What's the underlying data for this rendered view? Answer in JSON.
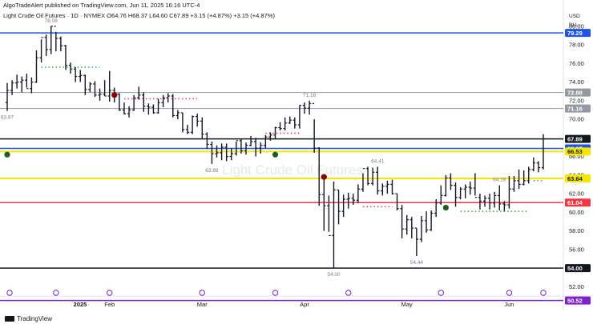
{
  "header": {
    "published": "AlgoTradeAlert published on TradingView.com, Jun 11, 2025 16:16 UTC-4",
    "symbol_line": "Light Crude Oil Futures · 1D · NYMEX  O64.76  H68.37  L64.60  C67.89  +3.15 (+4.87%)  +3.15 (+4.87%)"
  },
  "watermark": "Light Crude Oil Futures",
  "footer": {
    "brand": "TradingView"
  },
  "axis": {
    "currency": "USD",
    "bll": "BLL",
    "price_ticks": [
      "80.00",
      "78.00",
      "76.00",
      "74.00",
      "72.00",
      "70.00",
      "68.00",
      "66.00",
      "64.00",
      "62.00",
      "60.00",
      "58.00",
      "56.00",
      "54.00",
      "52.00"
    ],
    "time_ticks": [
      "2025",
      "Feb",
      "Mar",
      "Apr",
      "May",
      "Jun"
    ]
  },
  "colors": {
    "up": "#131722",
    "down": "#131722",
    "blue": "#1e53e5",
    "yellow": "#f7e600",
    "gray": "#9598a1",
    "green_dot": "#4caf50",
    "red_dot": "#f23645",
    "purple": "#7e22ce"
  },
  "chart_data": {
    "type": "ohlc",
    "title": "Light Crude Oil Futures · 1D · NYMEX",
    "ylim": [
      51.0,
      80.5
    ],
    "x": [
      "2025-01-02",
      "2025-06-11"
    ],
    "horizontal_levels": [
      {
        "value": 79.29,
        "color": "#1e53e5",
        "label": "79.29"
      },
      {
        "value": 72.88,
        "color": "#9598a1",
        "label": "72.88"
      },
      {
        "value": 71.16,
        "color": "#9598a1",
        "label": "71.16"
      },
      {
        "value": 67.89,
        "color": "#131722",
        "label": "67.89"
      },
      {
        "value": 66.87,
        "color": "#1e53e5",
        "label": "66.87"
      },
      {
        "value": 66.53,
        "color": "#f7e600",
        "label": "66.53"
      },
      {
        "value": 63.64,
        "color": "#f7e600",
        "label": "63.64"
      },
      {
        "value": 61.04,
        "color": "#f23645",
        "label": "61.04"
      },
      {
        "value": 54.0,
        "color": "#131722",
        "label": "54.00"
      },
      {
        "value": 50.52,
        "color": "#7e22ce",
        "label": "50.52"
      }
    ],
    "annotations": [
      {
        "text": "78.08",
        "date": "2025-01-15"
      },
      {
        "text": "71.16",
        "date": "2025-04-02"
      },
      {
        "text": "64.41",
        "date": "2025-04-23"
      },
      {
        "text": "64.19",
        "date": "2025-05-29"
      },
      {
        "text": "63.89",
        "date": "2025-03-05"
      },
      {
        "text": "63.87",
        "date": "2025-01-02"
      },
      {
        "text": "54.00",
        "date": "2025-04-09"
      },
      {
        "text": "54.44",
        "date": "2025-05-05"
      }
    ],
    "bars": [
      [
        "2025-01-02",
        71.8,
        73.9,
        70.9,
        73.1
      ],
      [
        "2025-01-03",
        73.1,
        74.2,
        72.6,
        73.9
      ],
      [
        "2025-01-06",
        73.9,
        74.8,
        73.3,
        74.0
      ],
      [
        "2025-01-07",
        74.0,
        74.6,
        72.9,
        74.2
      ],
      [
        "2025-01-08",
        74.2,
        74.9,
        73.4,
        73.3
      ],
      [
        "2025-01-09",
        73.3,
        74.5,
        72.8,
        74.0
      ],
      [
        "2025-01-10",
        74.0,
        77.4,
        73.9,
        76.6
      ],
      [
        "2025-01-13",
        76.6,
        78.6,
        76.1,
        78.8
      ],
      [
        "2025-01-14",
        78.8,
        79.1,
        76.8,
        77.5
      ],
      [
        "2025-01-15",
        77.5,
        80.0,
        77.0,
        80.0
      ],
      [
        "2025-01-16",
        80.0,
        79.4,
        77.3,
        78.7
      ],
      [
        "2025-01-17",
        78.7,
        78.9,
        77.3,
        77.9
      ],
      [
        "2025-01-21",
        77.9,
        78.0,
        75.3,
        75.8
      ],
      [
        "2025-01-22",
        75.8,
        76.1,
        74.9,
        75.4
      ],
      [
        "2025-01-23",
        75.4,
        75.6,
        74.0,
        74.6
      ],
      [
        "2025-01-24",
        74.6,
        75.3,
        74.0,
        74.7
      ],
      [
        "2025-01-27",
        74.7,
        74.8,
        72.6,
        73.2
      ],
      [
        "2025-01-28",
        73.2,
        74.0,
        72.9,
        73.8
      ],
      [
        "2025-01-29",
        73.8,
        74.1,
        72.4,
        72.6
      ],
      [
        "2025-01-30",
        72.6,
        73.3,
        72.0,
        72.7
      ],
      [
        "2025-01-31",
        72.7,
        74.2,
        72.5,
        72.5
      ],
      [
        "2025-02-03",
        72.5,
        75.2,
        71.9,
        73.1
      ],
      [
        "2025-02-04",
        73.1,
        73.4,
        71.8,
        72.7
      ],
      [
        "2025-02-05",
        72.7,
        72.8,
        70.9,
        71.0
      ],
      [
        "2025-02-06",
        71.0,
        71.8,
        70.5,
        70.6
      ],
      [
        "2025-02-07",
        70.6,
        71.4,
        70.2,
        71.0
      ],
      [
        "2025-02-10",
        71.0,
        72.6,
        70.9,
        72.3
      ],
      [
        "2025-02-11",
        72.3,
        73.5,
        72.1,
        72.6
      ],
      [
        "2025-02-12",
        72.6,
        72.9,
        70.8,
        71.4
      ],
      [
        "2025-02-13",
        71.4,
        71.7,
        70.5,
        71.3
      ],
      [
        "2025-02-14",
        71.3,
        71.6,
        70.6,
        70.7
      ],
      [
        "2025-02-18",
        70.7,
        72.2,
        70.6,
        71.8
      ],
      [
        "2025-02-19",
        71.8,
        72.6,
        71.3,
        72.3
      ],
      [
        "2025-02-20",
        72.3,
        72.8,
        71.8,
        72.5
      ],
      [
        "2025-02-21",
        72.5,
        72.7,
        70.2,
        70.4
      ],
      [
        "2025-02-24",
        70.4,
        71.0,
        70.0,
        70.7
      ],
      [
        "2025-02-25",
        70.7,
        70.7,
        68.6,
        68.9
      ],
      [
        "2025-02-26",
        68.9,
        69.4,
        68.4,
        68.6
      ],
      [
        "2025-02-27",
        68.6,
        70.4,
        68.4,
        70.3
      ],
      [
        "2025-02-28",
        70.3,
        70.6,
        69.2,
        69.8
      ],
      [
        "2025-03-03",
        69.8,
        70.2,
        67.9,
        68.4
      ],
      [
        "2025-03-04",
        68.4,
        68.6,
        66.8,
        67.3
      ],
      [
        "2025-03-05",
        67.3,
        67.6,
        65.2,
        66.3
      ],
      [
        "2025-03-06",
        66.3,
        67.2,
        65.9,
        66.4
      ],
      [
        "2025-03-07",
        66.4,
        67.4,
        65.6,
        67.0
      ],
      [
        "2025-03-10",
        67.0,
        67.4,
        65.5,
        66.0
      ],
      [
        "2025-03-11",
        66.0,
        66.9,
        65.6,
        66.3
      ],
      [
        "2025-03-12",
        66.3,
        67.6,
        66.1,
        67.7
      ],
      [
        "2025-03-13",
        67.7,
        67.9,
        66.3,
        66.6
      ],
      [
        "2025-03-14",
        66.6,
        67.5,
        66.2,
        67.2
      ],
      [
        "2025-03-17",
        67.2,
        68.2,
        67.1,
        67.6
      ],
      [
        "2025-03-18",
        67.6,
        68.0,
        66.0,
        66.9
      ],
      [
        "2025-03-19",
        66.9,
        67.5,
        66.3,
        67.2
      ],
      [
        "2025-03-20",
        67.2,
        68.3,
        66.9,
        68.1
      ],
      [
        "2025-03-21",
        68.1,
        68.6,
        67.7,
        68.3
      ],
      [
        "2025-03-24",
        68.3,
        69.2,
        67.9,
        69.1
      ],
      [
        "2025-03-25",
        69.1,
        69.7,
        68.8,
        69.0
      ],
      [
        "2025-03-26",
        69.0,
        70.2,
        68.8,
        69.6
      ],
      [
        "2025-03-27",
        69.6,
        70.3,
        69.5,
        69.9
      ],
      [
        "2025-03-28",
        69.9,
        70.2,
        69.0,
        69.4
      ],
      [
        "2025-03-31",
        69.4,
        71.5,
        69.0,
        71.5
      ],
      [
        "2025-04-01",
        71.5,
        71.8,
        70.6,
        71.2
      ],
      [
        "2025-04-02",
        71.2,
        72.0,
        70.5,
        71.7
      ],
      [
        "2025-04-03",
        71.7,
        70.0,
        66.4,
        66.9
      ],
      [
        "2025-04-04",
        66.9,
        67.0,
        60.7,
        61.9
      ],
      [
        "2025-04-07",
        61.9,
        63.9,
        58.0,
        60.7
      ],
      [
        "2025-04-08",
        60.7,
        61.8,
        57.9,
        57.5
      ],
      [
        "2025-04-09",
        57.5,
        63.3,
        54.0,
        62.4
      ],
      [
        "2025-04-10",
        62.4,
        62.4,
        58.7,
        60.1
      ],
      [
        "2025-04-11",
        60.1,
        61.9,
        59.5,
        61.4
      ],
      [
        "2025-04-14",
        61.4,
        62.1,
        60.4,
        61.5
      ],
      [
        "2025-04-15",
        61.5,
        62.0,
        60.8,
        61.3
      ],
      [
        "2025-04-16",
        61.3,
        63.0,
        61.0,
        62.5
      ],
      [
        "2025-04-17",
        62.5,
        64.2,
        62.2,
        64.7
      ],
      [
        "2025-04-21",
        64.7,
        64.9,
        62.9,
        63.1
      ],
      [
        "2025-04-22",
        63.1,
        64.8,
        62.9,
        64.3
      ],
      [
        "2025-04-23",
        64.3,
        64.9,
        61.9,
        62.3
      ],
      [
        "2025-04-24",
        62.3,
        63.1,
        61.8,
        62.8
      ],
      [
        "2025-04-25",
        62.8,
        63.4,
        62.0,
        63.0
      ],
      [
        "2025-04-28",
        63.0,
        63.5,
        61.9,
        62.0
      ],
      [
        "2025-04-29",
        62.0,
        62.0,
        60.2,
        60.4
      ],
      [
        "2025-04-30",
        60.4,
        60.8,
        57.2,
        58.2
      ],
      [
        "2025-05-01",
        58.2,
        59.7,
        57.6,
        59.2
      ],
      [
        "2025-05-02",
        59.2,
        59.5,
        57.2,
        58.3
      ],
      [
        "2025-05-05",
        58.3,
        58.3,
        55.3,
        57.1
      ],
      [
        "2025-05-06",
        57.1,
        59.6,
        56.8,
        59.1
      ],
      [
        "2025-05-07",
        59.1,
        60.1,
        57.8,
        58.1
      ],
      [
        "2025-05-08",
        58.1,
        60.2,
        58.0,
        59.9
      ],
      [
        "2025-05-09",
        59.9,
        61.4,
        59.5,
        61.0
      ],
      [
        "2025-05-12",
        61.0,
        62.9,
        60.8,
        61.8
      ],
      [
        "2025-05-13",
        61.8,
        64.0,
        61.7,
        63.7
      ],
      [
        "2025-05-14",
        63.7,
        64.2,
        62.4,
        62.9
      ],
      [
        "2025-05-15",
        62.9,
        63.2,
        60.6,
        61.6
      ],
      [
        "2025-05-16",
        61.6,
        62.7,
        61.4,
        62.5
      ],
      [
        "2025-05-19",
        62.5,
        63.0,
        61.5,
        62.7
      ],
      [
        "2025-05-20",
        62.7,
        63.3,
        61.9,
        62.6
      ],
      [
        "2025-05-21",
        62.6,
        64.2,
        61.8,
        61.6
      ],
      [
        "2025-05-22",
        61.6,
        62.0,
        60.3,
        61.2
      ],
      [
        "2025-05-23",
        61.2,
        61.8,
        60.6,
        61.5
      ],
      [
        "2025-05-27",
        61.5,
        62.0,
        60.3,
        61.0
      ],
      [
        "2025-05-28",
        61.0,
        62.2,
        60.5,
        61.8
      ],
      [
        "2025-05-29",
        61.8,
        62.9,
        60.2,
        60.9
      ],
      [
        "2025-05-30",
        60.9,
        61.2,
        60.1,
        60.8
      ],
      [
        "2025-06-02",
        60.8,
        63.9,
        60.4,
        62.5
      ],
      [
        "2025-06-03",
        62.5,
        63.9,
        62.2,
        63.4
      ],
      [
        "2025-06-04",
        63.4,
        64.6,
        62.5,
        63.0
      ],
      [
        "2025-06-05",
        63.0,
        64.5,
        62.9,
        63.4
      ],
      [
        "2025-06-06",
        63.4,
        64.9,
        63.1,
        64.6
      ],
      [
        "2025-06-09",
        64.6,
        65.9,
        64.4,
        65.3
      ],
      [
        "2025-06-10",
        65.3,
        65.5,
        64.3,
        64.8
      ],
      [
        "2025-06-11",
        64.8,
        68.4,
        64.6,
        67.9
      ]
    ],
    "stop_lines": [
      {
        "from": "2025-01-13",
        "to": "2025-01-30",
        "value": 75.6,
        "color": "#4caf50"
      },
      {
        "from": "2025-02-06",
        "to": "2025-02-28",
        "value": 72.2,
        "color": "#f23645"
      },
      {
        "from": "2025-03-20",
        "to": "2025-03-31",
        "value": 68.5,
        "color": "#f23645"
      },
      {
        "from": "2025-04-17",
        "to": "2025-04-28",
        "value": 60.6,
        "color": "#f23645"
      },
      {
        "from": "2025-05-16",
        "to": "2025-06-06",
        "value": 60.1,
        "color": "#4caf50"
      },
      {
        "from": "2025-06-09",
        "to": "2025-06-11",
        "value": 63.4,
        "color": "#4caf50"
      }
    ],
    "signal_dots": [
      {
        "date": "2025-01-02",
        "value": 66.2,
        "color": "#1b5e20"
      },
      {
        "date": "2025-02-04",
        "value": 72.6,
        "color": "#8b0000"
      },
      {
        "date": "2025-03-24",
        "value": 66.2,
        "color": "#1b5e20"
      },
      {
        "date": "2025-04-07",
        "value": 63.8,
        "color": "#8b0000"
      },
      {
        "date": "2025-05-13",
        "value": 60.5,
        "color": "#1b5e20"
      }
    ]
  }
}
